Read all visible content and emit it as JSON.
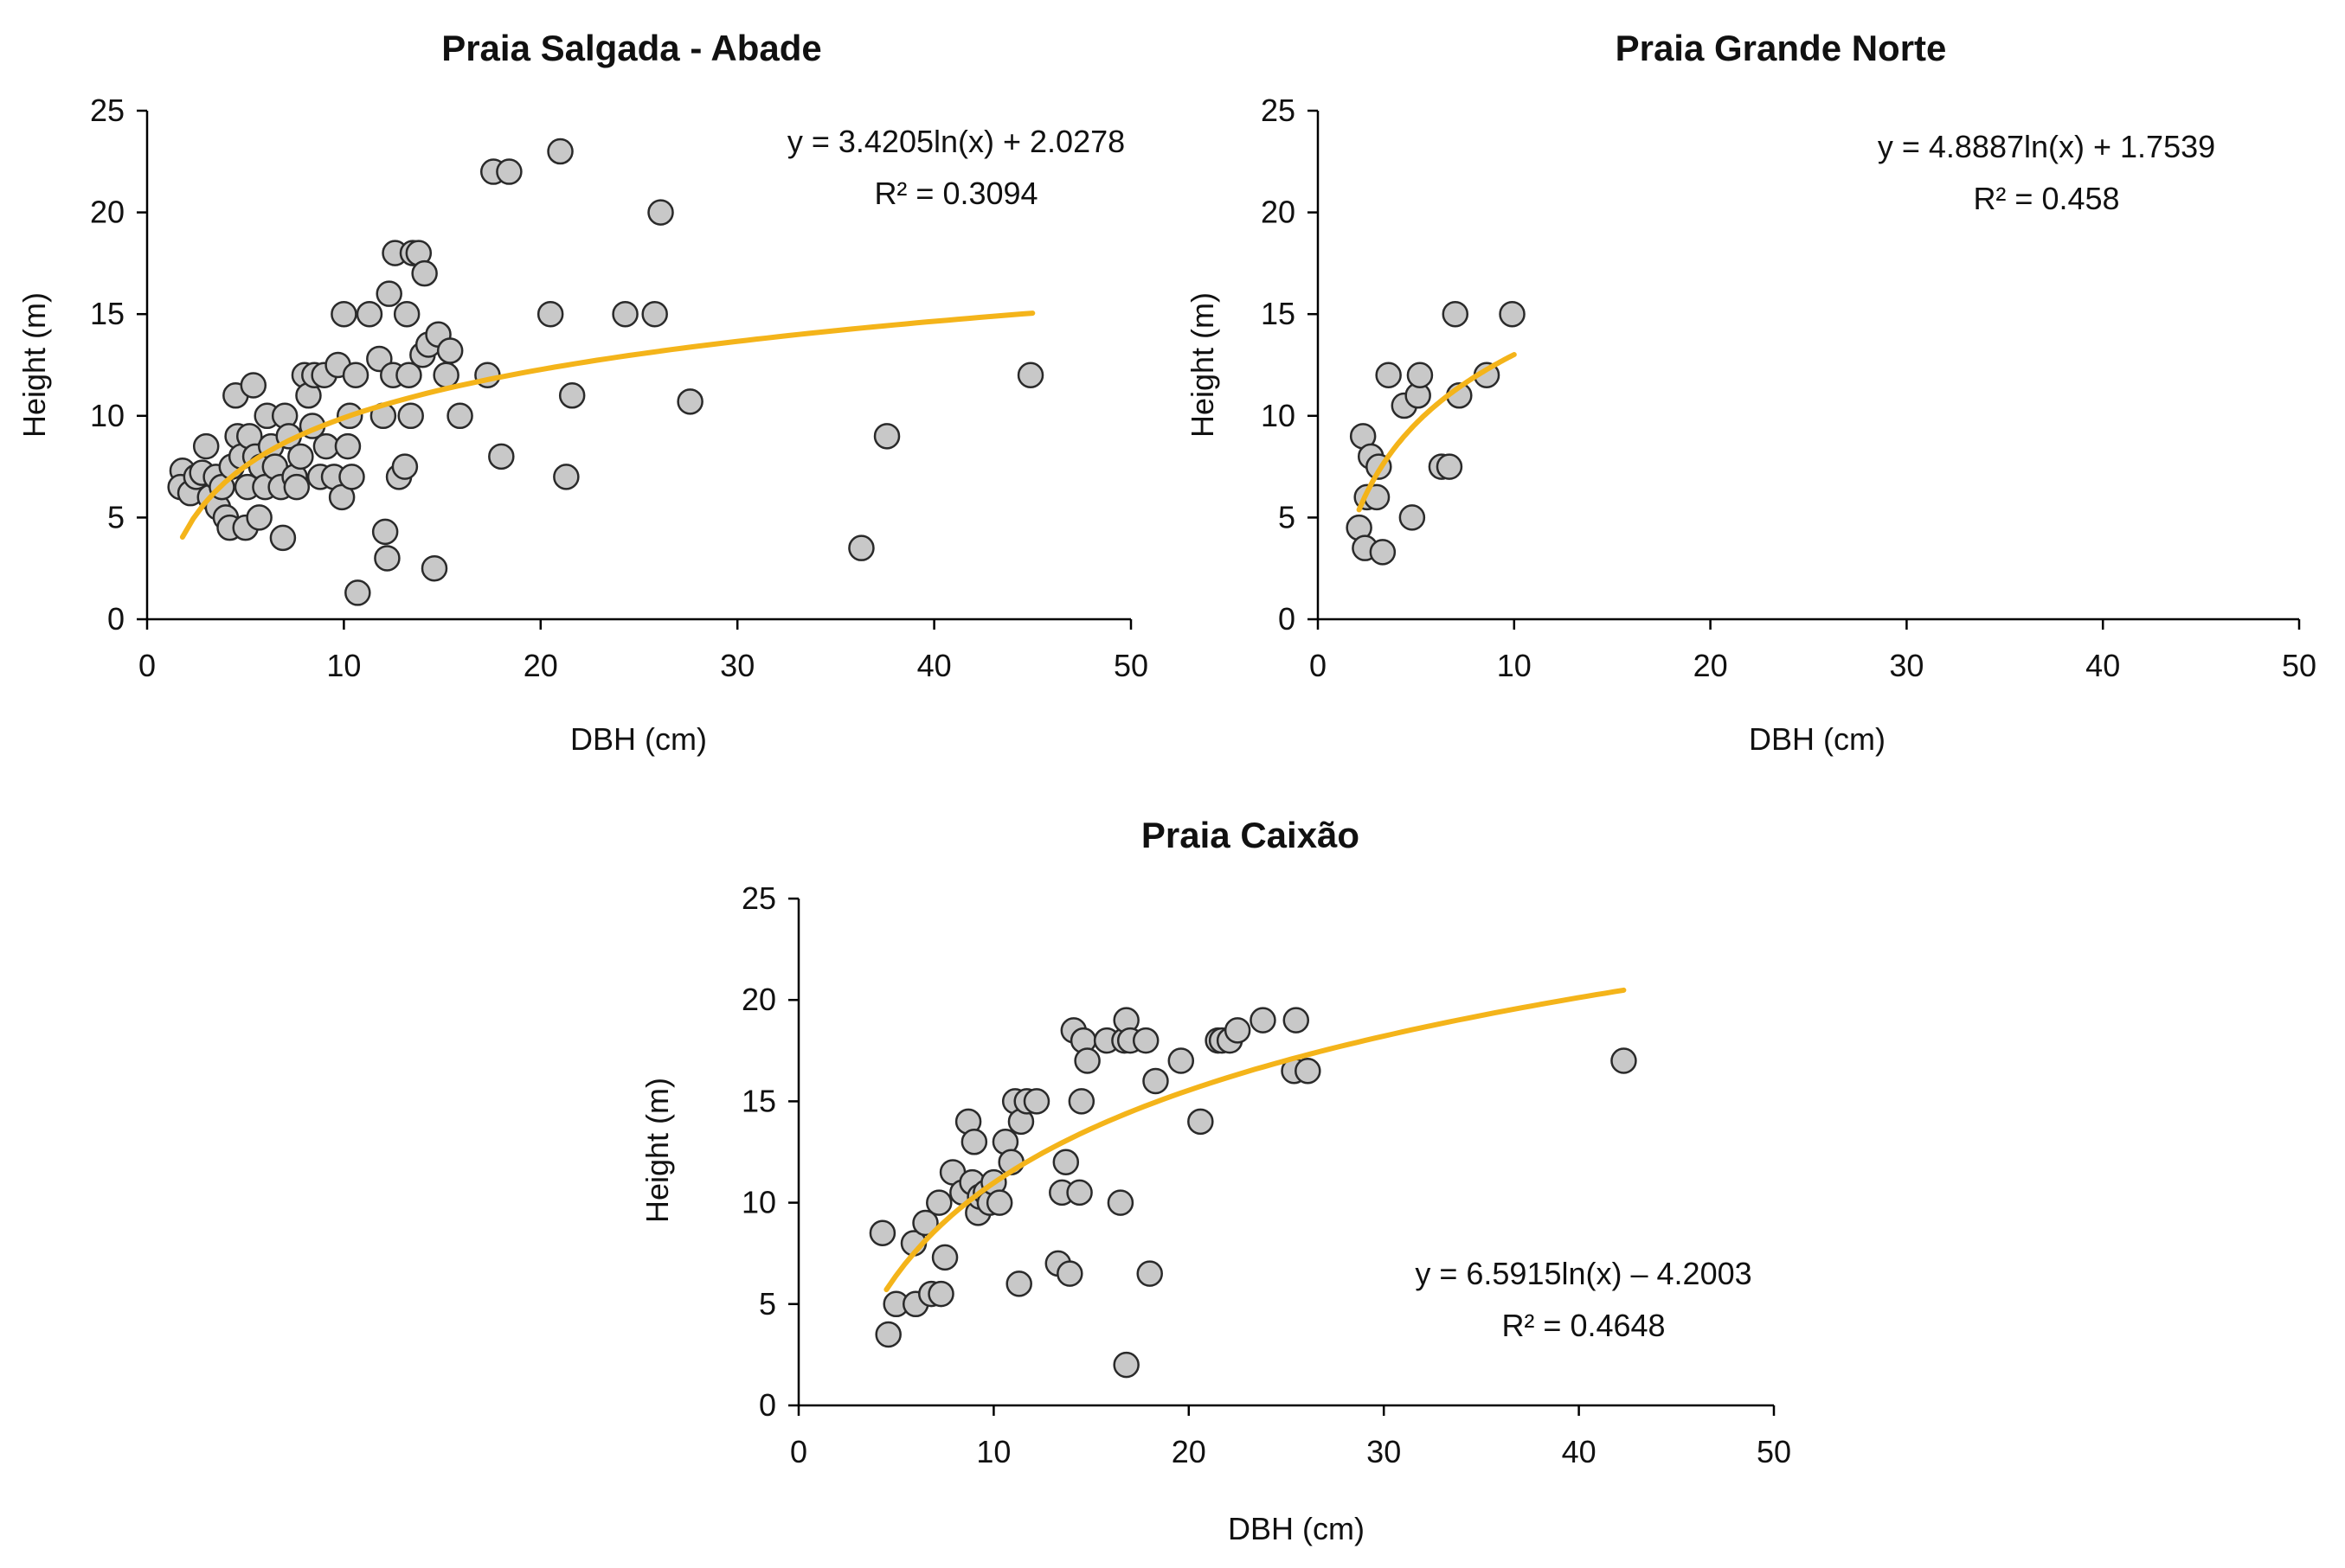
{
  "chart_data": [
    {
      "type": "scatter",
      "title": "Praia Salgada - Abade",
      "xlabel": "DBH (cm)",
      "ylabel": "Height (m)",
      "xlim": [
        0,
        50
      ],
      "ylim": [
        0,
        25
      ],
      "xticks": [
        "0",
        "10",
        "20",
        "30",
        "40",
        "50"
      ],
      "yticks": [
        "0",
        "5",
        "10",
        "15",
        "20",
        "25"
      ],
      "grid": false,
      "legend": "none",
      "point_color": "#c8c8c8",
      "trend_color": "#f4b41a",
      "trendline": {
        "type": "log",
        "a": 3.4205,
        "b": 2.0278,
        "x_range": [
          1.8,
          45
        ]
      },
      "equation": "y = 3.4205ln(x) + 2.0278",
      "r_squared": "R² = 0.3094",
      "points": [
        [
          1.8,
          7.3
        ],
        [
          1.7,
          6.5
        ],
        [
          2.2,
          6.2
        ],
        [
          2.5,
          7.0
        ],
        [
          2.8,
          7.2
        ],
        [
          3.0,
          8.5
        ],
        [
          3.2,
          6.0
        ],
        [
          3.5,
          7.0
        ],
        [
          3.6,
          5.5
        ],
        [
          3.8,
          6.5
        ],
        [
          4.0,
          5.0
        ],
        [
          4.2,
          4.5
        ],
        [
          4.3,
          7.5
        ],
        [
          4.5,
          11.0
        ],
        [
          4.6,
          9.0
        ],
        [
          4.8,
          8.0
        ],
        [
          5.0,
          4.5
        ],
        [
          5.1,
          6.5
        ],
        [
          5.2,
          9.0
        ],
        [
          5.4,
          11.5
        ],
        [
          5.5,
          8.0
        ],
        [
          5.7,
          5.0
        ],
        [
          5.8,
          7.5
        ],
        [
          6.0,
          6.5
        ],
        [
          6.1,
          10.0
        ],
        [
          6.3,
          8.5
        ],
        [
          6.5,
          7.5
        ],
        [
          6.8,
          6.5
        ],
        [
          6.9,
          4.0
        ],
        [
          7.0,
          10.0
        ],
        [
          7.2,
          9.0
        ],
        [
          7.5,
          7.0
        ],
        [
          7.6,
          6.5
        ],
        [
          7.8,
          8.0
        ],
        [
          8.0,
          12.0
        ],
        [
          8.2,
          11.0
        ],
        [
          8.4,
          9.5
        ],
        [
          8.5,
          12.0
        ],
        [
          8.8,
          7.0
        ],
        [
          9.0,
          12.0
        ],
        [
          9.1,
          8.5
        ],
        [
          9.5,
          7.0
        ],
        [
          9.7,
          12.5
        ],
        [
          9.9,
          6.0
        ],
        [
          10.0,
          15.0
        ],
        [
          10.2,
          8.5
        ],
        [
          10.3,
          10.0
        ],
        [
          10.4,
          7.0
        ],
        [
          10.6,
          12.0
        ],
        [
          10.7,
          1.3
        ],
        [
          11.3,
          15.0
        ],
        [
          11.8,
          12.8
        ],
        [
          12.0,
          10.0
        ],
        [
          12.1,
          4.3
        ],
        [
          12.2,
          3.0
        ],
        [
          12.3,
          16.0
        ],
        [
          12.5,
          12.0
        ],
        [
          12.6,
          18.0
        ],
        [
          12.8,
          7.0
        ],
        [
          13.1,
          7.5
        ],
        [
          13.2,
          15.0
        ],
        [
          13.3,
          12.0
        ],
        [
          13.4,
          10.0
        ],
        [
          13.5,
          18.0
        ],
        [
          13.8,
          18.0
        ],
        [
          14.0,
          13.0
        ],
        [
          14.1,
          17.0
        ],
        [
          14.3,
          13.5
        ],
        [
          14.6,
          2.5
        ],
        [
          14.8,
          14.0
        ],
        [
          15.2,
          12.0
        ],
        [
          15.4,
          13.2
        ],
        [
          15.9,
          10.0
        ],
        [
          17.3,
          12.0
        ],
        [
          17.6,
          22.0
        ],
        [
          18.0,
          8.0
        ],
        [
          18.4,
          22.0
        ],
        [
          20.5,
          15.0
        ],
        [
          21.0,
          23.0
        ],
        [
          21.3,
          7.0
        ],
        [
          21.6,
          11.0
        ],
        [
          24.3,
          15.0
        ],
        [
          25.8,
          15.0
        ],
        [
          26.1,
          20.0
        ],
        [
          27.6,
          10.7
        ],
        [
          36.3,
          3.5
        ],
        [
          37.6,
          9.0
        ],
        [
          44.9,
          12.0
        ]
      ]
    },
    {
      "type": "scatter",
      "title": "Praia Grande Norte",
      "xlabel": "DBH (cm)",
      "ylabel": "Height (m)",
      "xlim": [
        0,
        50
      ],
      "ylim": [
        0,
        25
      ],
      "xticks": [
        "0",
        "10",
        "20",
        "30",
        "40",
        "50"
      ],
      "yticks": [
        "0",
        "5",
        "10",
        "15",
        "20",
        "25"
      ],
      "grid": false,
      "legend": "none",
      "point_color": "#c8c8c8",
      "trend_color": "#f4b41a",
      "trendline": {
        "type": "log",
        "a": 4.8887,
        "b": 1.7539,
        "x_range": [
          2.1,
          10
        ]
      },
      "equation": "y = 4.8887ln(x) + 1.7539",
      "r_squared": "R² = 0.458",
      "points": [
        [
          2.1,
          4.5
        ],
        [
          2.3,
          9.0
        ],
        [
          2.4,
          3.5
        ],
        [
          2.5,
          6.0
        ],
        [
          2.7,
          8.0
        ],
        [
          3.0,
          6.0
        ],
        [
          3.1,
          7.5
        ],
        [
          3.3,
          3.3
        ],
        [
          3.6,
          12.0
        ],
        [
          4.4,
          10.5
        ],
        [
          4.8,
          5.0
        ],
        [
          5.1,
          11.0
        ],
        [
          5.2,
          12.0
        ],
        [
          6.3,
          7.5
        ],
        [
          6.7,
          7.5
        ],
        [
          7.0,
          15.0
        ],
        [
          7.2,
          11.0
        ],
        [
          8.6,
          12.0
        ],
        [
          9.9,
          15.0
        ]
      ]
    },
    {
      "type": "scatter",
      "title": "Praia Caixão",
      "xlabel": "DBH (cm)",
      "ylabel": "Height (m)",
      "xlim": [
        0,
        50
      ],
      "ylim": [
        0,
        25
      ],
      "xticks": [
        "0",
        "10",
        "20",
        "30",
        "40",
        "50"
      ],
      "yticks": [
        "0",
        "5",
        "10",
        "15",
        "20",
        "25"
      ],
      "grid": false,
      "legend": "none",
      "point_color": "#c8c8c8",
      "trend_color": "#f4b41a",
      "trendline": {
        "type": "log",
        "a": 6.5915,
        "b": -4.2003,
        "x_range": [
          4.5,
          42.3
        ]
      },
      "equation": "y = 6.5915ln(x) – 4.2003",
      "r_squared": "R² = 0.4648",
      "points": [
        [
          4.3,
          8.5
        ],
        [
          4.6,
          3.5
        ],
        [
          5.0,
          5.0
        ],
        [
          5.9,
          8.0
        ],
        [
          6.0,
          5.0
        ],
        [
          6.5,
          9.0
        ],
        [
          6.8,
          5.5
        ],
        [
          7.2,
          10.0
        ],
        [
          7.3,
          5.5
        ],
        [
          7.5,
          7.3
        ],
        [
          7.9,
          11.5
        ],
        [
          8.4,
          10.5
        ],
        [
          8.7,
          14.0
        ],
        [
          8.9,
          11.0
        ],
        [
          9.0,
          13.0
        ],
        [
          9.2,
          9.5
        ],
        [
          9.3,
          10.3
        ],
        [
          9.6,
          10.5
        ],
        [
          9.8,
          10.0
        ],
        [
          10.0,
          11.0
        ],
        [
          10.3,
          10.0
        ],
        [
          10.6,
          13.0
        ],
        [
          10.9,
          12.0
        ],
        [
          11.1,
          15.0
        ],
        [
          11.3,
          6.0
        ],
        [
          11.4,
          14.0
        ],
        [
          11.7,
          15.0
        ],
        [
          12.2,
          15.0
        ],
        [
          13.3,
          7.0
        ],
        [
          13.5,
          10.5
        ],
        [
          13.7,
          12.0
        ],
        [
          13.9,
          6.5
        ],
        [
          14.1,
          18.5
        ],
        [
          14.4,
          10.5
        ],
        [
          14.5,
          15.0
        ],
        [
          14.6,
          18.0
        ],
        [
          14.8,
          17.0
        ],
        [
          15.8,
          18.0
        ],
        [
          16.5,
          10.0
        ],
        [
          16.7,
          18.0
        ],
        [
          16.8,
          19.0
        ],
        [
          16.8,
          2.0
        ],
        [
          17.0,
          18.0
        ],
        [
          17.8,
          18.0
        ],
        [
          18.0,
          6.5
        ],
        [
          18.3,
          16.0
        ],
        [
          19.6,
          17.0
        ],
        [
          20.6,
          14.0
        ],
        [
          21.5,
          18.0
        ],
        [
          21.7,
          18.0
        ],
        [
          22.1,
          18.0
        ],
        [
          22.5,
          18.5
        ],
        [
          23.8,
          19.0
        ],
        [
          25.4,
          16.5
        ],
        [
          25.5,
          19.0
        ],
        [
          26.1,
          16.5
        ],
        [
          42.3,
          17.0
        ]
      ]
    }
  ]
}
